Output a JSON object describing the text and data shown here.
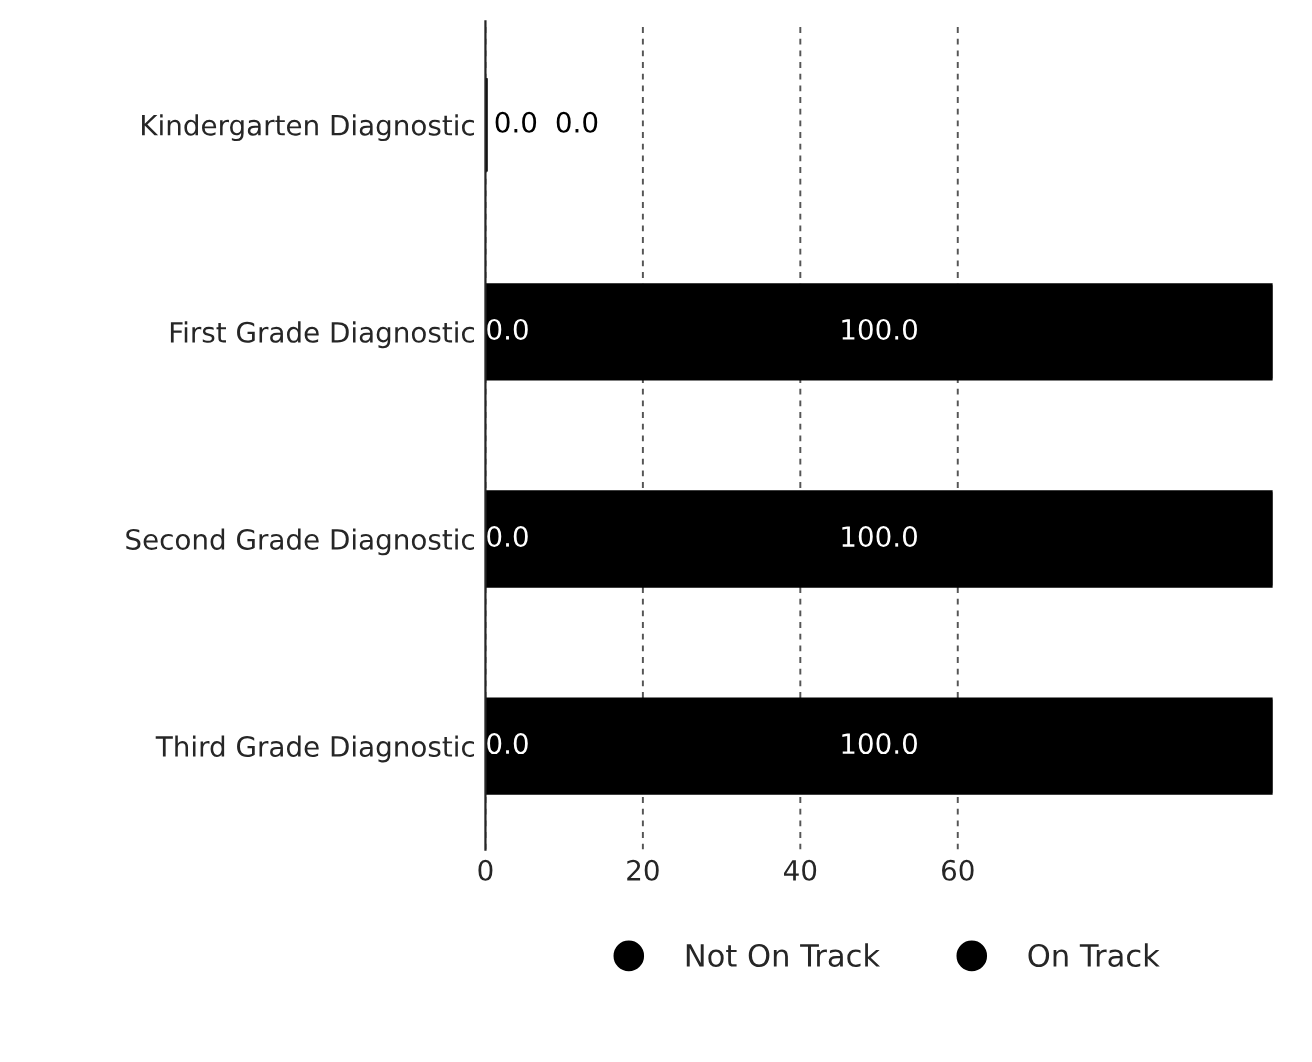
{
  "chart_data": {
    "type": "bar",
    "orientation": "horizontal",
    "categories": [
      "Kindergarten Diagnostic",
      "First Grade Diagnostic",
      "Second Grade Diagnostic",
      "Third Grade Diagnostic"
    ],
    "series": [
      {
        "name": "Not On Track",
        "color": "#000000",
        "values": [
          0,
          0,
          0,
          0
        ],
        "value_labels": [
          "0.0",
          "0.0",
          "0.0",
          "0.0"
        ]
      },
      {
        "name": "On Track",
        "color": "#000000",
        "values": [
          0,
          100,
          100,
          100
        ],
        "value_labels": [
          "0.0",
          "100.0",
          "100.0",
          "100.0"
        ]
      }
    ],
    "xlim": [
      0,
      100
    ],
    "xticks": [
      0,
      20,
      40,
      60
    ],
    "grid": "x",
    "legend": "bottom"
  }
}
